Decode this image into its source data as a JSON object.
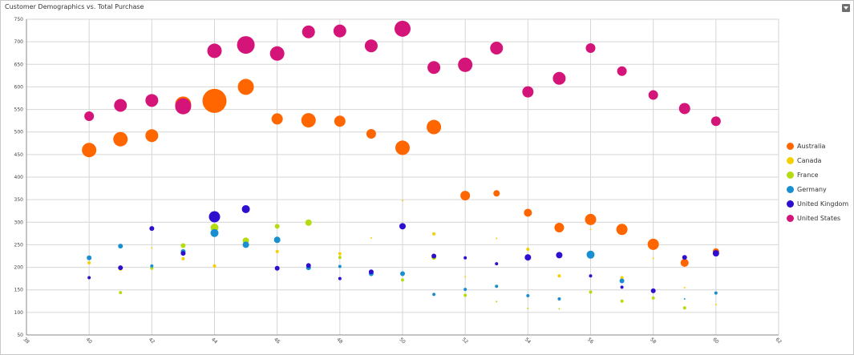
{
  "title": "Customer Demographics vs. Total Purchase",
  "chart_data": {
    "type": "scatter",
    "title": "Customer Demographics vs. Total Purchase",
    "xlabel": "",
    "ylabel": "",
    "xlim": [
      38,
      62
    ],
    "ylim": [
      50,
      750
    ],
    "xticks": [
      38,
      40,
      42,
      44,
      46,
      48,
      50,
      52,
      54,
      56,
      58,
      60,
      62
    ],
    "yticks": [
      50,
      100,
      150,
      200,
      250,
      300,
      350,
      400,
      450,
      500,
      550,
      600,
      650,
      700,
      750
    ],
    "grid": true,
    "legend_position": "right",
    "series": [
      {
        "name": "Australia",
        "color": "#ff6600",
        "points": [
          {
            "x": 40,
            "y": 460,
            "r": 9
          },
          {
            "x": 41,
            "y": 484,
            "r": 9
          },
          {
            "x": 42,
            "y": 492,
            "r": 8
          },
          {
            "x": 43,
            "y": 561,
            "r": 10
          },
          {
            "x": 44,
            "y": 569,
            "r": 15
          },
          {
            "x": 45,
            "y": 600,
            "r": 10
          },
          {
            "x": 46,
            "y": 529,
            "r": 7
          },
          {
            "x": 47,
            "y": 526,
            "r": 9
          },
          {
            "x": 48,
            "y": 524,
            "r": 7
          },
          {
            "x": 49,
            "y": 496,
            "r": 6
          },
          {
            "x": 50,
            "y": 465,
            "r": 9
          },
          {
            "x": 51,
            "y": 511,
            "r": 9
          },
          {
            "x": 52,
            "y": 359,
            "r": 6
          },
          {
            "x": 53,
            "y": 364,
            "r": 4
          },
          {
            "x": 54,
            "y": 321,
            "r": 5
          },
          {
            "x": 55,
            "y": 288,
            "r": 6
          },
          {
            "x": 56,
            "y": 306,
            "r": 7
          },
          {
            "x": 57,
            "y": 284,
            "r": 7
          },
          {
            "x": 58,
            "y": 251,
            "r": 7
          },
          {
            "x": 59,
            "y": 210,
            "r": 5
          },
          {
            "x": 60,
            "y": 235,
            "r": 4
          }
        ]
      },
      {
        "name": "Canada",
        "color": "#f5d000",
        "points": [
          {
            "x": 40,
            "y": 210,
            "r": 2
          },
          {
            "x": 41,
            "y": 196,
            "r": 2
          },
          {
            "x": 42,
            "y": 243,
            "r": 1
          },
          {
            "x": 43,
            "y": 219,
            "r": 2
          },
          {
            "x": 44,
            "y": 203,
            "r": 2
          },
          {
            "x": 45,
            "y": 258,
            "r": 1
          },
          {
            "x": 46,
            "y": 235,
            "r": 2
          },
          {
            "x": 47,
            "y": 208,
            "r": 1
          },
          {
            "x": 48,
            "y": 230,
            "r": 2
          },
          {
            "x": 49,
            "y": 265,
            "r": 1
          },
          {
            "x": 50,
            "y": 348,
            "r": 1
          },
          {
            "x": 51,
            "y": 274,
            "r": 2
          },
          {
            "x": 52,
            "y": 179,
            "r": 1
          },
          {
            "x": 53,
            "y": 264,
            "r": 1
          },
          {
            "x": 54,
            "y": 240,
            "r": 2
          },
          {
            "x": 55,
            "y": 181,
            "r": 2
          },
          {
            "x": 56,
            "y": 284,
            "r": 1
          },
          {
            "x": 57,
            "y": 177,
            "r": 2
          },
          {
            "x": 58,
            "y": 220,
            "r": 1
          },
          {
            "x": 59,
            "y": 155,
            "r": 1
          },
          {
            "x": 60,
            "y": 117,
            "r": 1
          }
        ]
      },
      {
        "name": "France",
        "color": "#b5dc10",
        "points": [
          {
            "x": 40,
            "y": 175,
            "r": 1
          },
          {
            "x": 41,
            "y": 144,
            "r": 2
          },
          {
            "x": 42,
            "y": 198,
            "r": 2
          },
          {
            "x": 43,
            "y": 248,
            "r": 3
          },
          {
            "x": 44,
            "y": 288,
            "r": 5
          },
          {
            "x": 45,
            "y": 259,
            "r": 4
          },
          {
            "x": 46,
            "y": 291,
            "r": 3
          },
          {
            "x": 47,
            "y": 299,
            "r": 4
          },
          {
            "x": 48,
            "y": 222,
            "r": 2
          },
          {
            "x": 49,
            "y": 184,
            "r": 2
          },
          {
            "x": 50,
            "y": 172,
            "r": 2
          },
          {
            "x": 51,
            "y": 222,
            "r": 3
          },
          {
            "x": 52,
            "y": 138,
            "r": 2
          },
          {
            "x": 53,
            "y": 124,
            "r": 1
          },
          {
            "x": 54,
            "y": 109,
            "r": 1
          },
          {
            "x": 55,
            "y": 108,
            "r": 1
          },
          {
            "x": 56,
            "y": 145,
            "r": 2
          },
          {
            "x": 57,
            "y": 125,
            "r": 2
          },
          {
            "x": 58,
            "y": 132,
            "r": 2
          },
          {
            "x": 59,
            "y": 110,
            "r": 2
          },
          {
            "x": 60,
            "y": 230,
            "r": 2
          }
        ]
      },
      {
        "name": "Germany",
        "color": "#1a8fcf",
        "points": [
          {
            "x": 40,
            "y": 221,
            "r": 3
          },
          {
            "x": 41,
            "y": 247,
            "r": 3
          },
          {
            "x": 42,
            "y": 203,
            "r": 2
          },
          {
            "x": 43,
            "y": 235,
            "r": 3
          },
          {
            "x": 44,
            "y": 276,
            "r": 5
          },
          {
            "x": 45,
            "y": 250,
            "r": 4
          },
          {
            "x": 46,
            "y": 261,
            "r": 4
          },
          {
            "x": 47,
            "y": 199,
            "r": 3
          },
          {
            "x": 48,
            "y": 202,
            "r": 2
          },
          {
            "x": 49,
            "y": 186,
            "r": 3
          },
          {
            "x": 50,
            "y": 186,
            "r": 3
          },
          {
            "x": 51,
            "y": 140,
            "r": 2
          },
          {
            "x": 52,
            "y": 151,
            "r": 2
          },
          {
            "x": 53,
            "y": 158,
            "r": 2
          },
          {
            "x": 54,
            "y": 137,
            "r": 2
          },
          {
            "x": 55,
            "y": 130,
            "r": 2
          },
          {
            "x": 56,
            "y": 228,
            "r": 5
          },
          {
            "x": 57,
            "y": 170,
            "r": 3
          },
          {
            "x": 58,
            "y": 148,
            "r": 2
          },
          {
            "x": 59,
            "y": 130,
            "r": 1
          },
          {
            "x": 60,
            "y": 143,
            "r": 2
          }
        ]
      },
      {
        "name": "United Kingdom",
        "color": "#2e0fcf",
        "points": [
          {
            "x": 40,
            "y": 177,
            "r": 2
          },
          {
            "x": 41,
            "y": 199,
            "r": 3
          },
          {
            "x": 42,
            "y": 286,
            "r": 3
          },
          {
            "x": 43,
            "y": 231,
            "r": 3
          },
          {
            "x": 44,
            "y": 312,
            "r": 7
          },
          {
            "x": 45,
            "y": 329,
            "r": 5
          },
          {
            "x": 46,
            "y": 198,
            "r": 3
          },
          {
            "x": 47,
            "y": 204,
            "r": 3
          },
          {
            "x": 48,
            "y": 175,
            "r": 2
          },
          {
            "x": 49,
            "y": 190,
            "r": 3
          },
          {
            "x": 50,
            "y": 291,
            "r": 4
          },
          {
            "x": 51,
            "y": 225,
            "r": 3
          },
          {
            "x": 52,
            "y": 221,
            "r": 2
          },
          {
            "x": 53,
            "y": 208,
            "r": 2
          },
          {
            "x": 54,
            "y": 222,
            "r": 4
          },
          {
            "x": 55,
            "y": 227,
            "r": 4
          },
          {
            "x": 56,
            "y": 181,
            "r": 2
          },
          {
            "x": 57,
            "y": 156,
            "r": 2
          },
          {
            "x": 58,
            "y": 148,
            "r": 3
          },
          {
            "x": 59,
            "y": 222,
            "r": 3
          },
          {
            "x": 60,
            "y": 231,
            "r": 4
          }
        ]
      },
      {
        "name": "United States",
        "color": "#d41478",
        "points": [
          {
            "x": 40,
            "y": 535,
            "r": 6
          },
          {
            "x": 41,
            "y": 559,
            "r": 8
          },
          {
            "x": 42,
            "y": 570,
            "r": 8
          },
          {
            "x": 43,
            "y": 557,
            "r": 10
          },
          {
            "x": 44,
            "y": 680,
            "r": 9
          },
          {
            "x": 45,
            "y": 693,
            "r": 11
          },
          {
            "x": 46,
            "y": 674,
            "r": 9
          },
          {
            "x": 47,
            "y": 722,
            "r": 8
          },
          {
            "x": 48,
            "y": 724,
            "r": 8
          },
          {
            "x": 49,
            "y": 691,
            "r": 8
          },
          {
            "x": 50,
            "y": 729,
            "r": 10
          },
          {
            "x": 51,
            "y": 643,
            "r": 8
          },
          {
            "x": 52,
            "y": 649,
            "r": 9
          },
          {
            "x": 53,
            "y": 686,
            "r": 8
          },
          {
            "x": 54,
            "y": 589,
            "r": 7
          },
          {
            "x": 55,
            "y": 619,
            "r": 8
          },
          {
            "x": 56,
            "y": 686,
            "r": 6
          },
          {
            "x": 57,
            "y": 635,
            "r": 6
          },
          {
            "x": 58,
            "y": 582,
            "r": 6
          },
          {
            "x": 59,
            "y": 552,
            "r": 7
          },
          {
            "x": 60,
            "y": 524,
            "r": 6
          }
        ]
      }
    ]
  },
  "legend": [
    {
      "label": "Australia",
      "color": "#ff6600"
    },
    {
      "label": "Canada",
      "color": "#f5d000"
    },
    {
      "label": "France",
      "color": "#b5dc10"
    },
    {
      "label": "Germany",
      "color": "#1a8fcf"
    },
    {
      "label": "United Kingdom",
      "color": "#2e0fcf"
    },
    {
      "label": "United States",
      "color": "#d41478"
    }
  ],
  "icons": {
    "menu": "dropdown-menu-icon"
  }
}
